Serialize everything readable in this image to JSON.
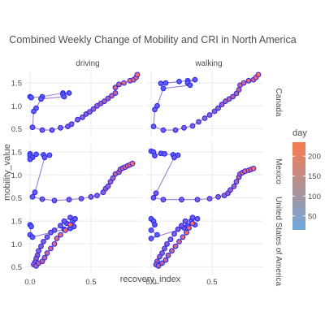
{
  "chart_data": {
    "type": "scatter",
    "title": "Combined Weekly Change of Mobility and CRI in North America",
    "xlabel": "recovery_index",
    "ylabel": "mobility_value",
    "x_ticks": [
      "0.0",
      "0.5"
    ],
    "x_tick_values": [
      0.0,
      0.5
    ],
    "y_ticks": [
      "0.5",
      "1.0",
      "1.5"
    ],
    "y_tick_values": [
      0.5,
      1.0,
      1.5
    ],
    "xlim": [
      -0.04,
      0.92
    ],
    "ylim": [
      0.33,
      1.75
    ],
    "columns": [
      "driving",
      "walking"
    ],
    "rows": [
      "Canada",
      "Mexico",
      "United States of America"
    ],
    "legend": {
      "title": "day",
      "ticks": [
        "50",
        "100",
        "150",
        "200"
      ],
      "tick_values": [
        50,
        100,
        150,
        200
      ],
      "range": [
        15,
        235
      ],
      "placement": "right",
      "color_low": "#6fa8dc",
      "color_high": "#f97a4f"
    },
    "style": {
      "marker_fill_low": "#5b5cf6",
      "marker_fill_high": "#ff6b5e",
      "marker_edge": "#2a24e8",
      "path_color": "#a27bd0",
      "panel_grid": "#ebebeb"
    },
    "panels": [
      {
        "row": "Canada",
        "column": "driving",
        "points": [
          [
            0.0,
            1.2
          ],
          [
            0.01,
            1.18
          ],
          [
            0.1,
            1.2
          ],
          [
            0.27,
            1.28
          ],
          [
            0.32,
            1.28
          ],
          [
            0.27,
            1.25
          ],
          [
            0.28,
            1.2
          ],
          [
            0.09,
            1.15
          ],
          [
            0.05,
            0.95
          ],
          [
            0.03,
            0.88
          ],
          [
            0.02,
            0.53
          ],
          [
            0.1,
            0.47
          ],
          [
            0.18,
            0.47
          ],
          [
            0.25,
            0.52
          ],
          [
            0.31,
            0.55
          ],
          [
            0.34,
            0.6
          ],
          [
            0.39,
            0.7
          ],
          [
            0.43,
            0.75
          ],
          [
            0.46,
            0.82
          ],
          [
            0.49,
            0.87
          ],
          [
            0.52,
            0.93
          ],
          [
            0.55,
            1.0
          ],
          [
            0.58,
            1.05
          ],
          [
            0.61,
            1.1
          ],
          [
            0.64,
            1.16
          ],
          [
            0.67,
            1.22
          ],
          [
            0.7,
            1.28
          ],
          [
            0.7,
            1.4
          ],
          [
            0.73,
            1.47
          ],
          [
            0.77,
            1.5
          ],
          [
            0.82,
            1.55
          ],
          [
            0.85,
            1.57
          ],
          [
            0.87,
            1.62
          ],
          [
            0.88,
            1.68
          ]
        ]
      },
      {
        "row": "Canada",
        "column": "walking",
        "points": [
          [
            0.08,
            1.49
          ],
          [
            0.12,
            1.5
          ],
          [
            0.23,
            1.53
          ],
          [
            0.3,
            1.55
          ],
          [
            0.36,
            1.57
          ],
          [
            0.3,
            1.5
          ],
          [
            0.32,
            1.45
          ],
          [
            0.1,
            1.38
          ],
          [
            0.05,
            1.0
          ],
          [
            0.03,
            0.92
          ],
          [
            0.02,
            0.55
          ],
          [
            0.1,
            0.47
          ],
          [
            0.2,
            0.47
          ],
          [
            0.27,
            0.52
          ],
          [
            0.34,
            0.56
          ],
          [
            0.39,
            0.65
          ],
          [
            0.44,
            0.73
          ],
          [
            0.48,
            0.8
          ],
          [
            0.52,
            0.88
          ],
          [
            0.55,
            0.95
          ],
          [
            0.58,
            1.03
          ],
          [
            0.61,
            1.1
          ],
          [
            0.64,
            1.15
          ],
          [
            0.67,
            1.2
          ],
          [
            0.7,
            1.27
          ],
          [
            0.72,
            1.35
          ],
          [
            0.73,
            1.45
          ],
          [
            0.76,
            1.5
          ],
          [
            0.8,
            1.55
          ],
          [
            0.84,
            1.57
          ],
          [
            0.86,
            1.62
          ],
          [
            0.88,
            1.68
          ]
        ]
      },
      {
        "row": "Mexico",
        "column": "driving",
        "points": [
          [
            0.0,
            1.46
          ],
          [
            0.0,
            1.42
          ],
          [
            0.02,
            1.38
          ],
          [
            0.0,
            1.34
          ],
          [
            0.05,
            1.45
          ],
          [
            0.11,
            1.44
          ],
          [
            0.16,
            1.43
          ],
          [
            0.12,
            1.38
          ],
          [
            0.04,
            0.62
          ],
          [
            0.02,
            0.52
          ],
          [
            0.1,
            0.47
          ],
          [
            0.2,
            0.44
          ],
          [
            0.32,
            0.46
          ],
          [
            0.42,
            0.48
          ],
          [
            0.5,
            0.52
          ],
          [
            0.55,
            0.55
          ],
          [
            0.6,
            0.62
          ],
          [
            0.62,
            0.7
          ],
          [
            0.64,
            0.75
          ],
          [
            0.66,
            0.85
          ],
          [
            0.68,
            0.93
          ],
          [
            0.7,
            1.02
          ],
          [
            0.73,
            1.06
          ],
          [
            0.74,
            1.12
          ],
          [
            0.76,
            1.15
          ],
          [
            0.78,
            1.17
          ],
          [
            0.8,
            1.2
          ],
          [
            0.82,
            1.22
          ],
          [
            0.84,
            1.25
          ]
        ]
      },
      {
        "row": "Mexico",
        "column": "walking",
        "points": [
          [
            0.0,
            1.52
          ],
          [
            0.02,
            1.5
          ],
          [
            0.03,
            1.42
          ],
          [
            0.08,
            1.47
          ],
          [
            0.11,
            1.46
          ],
          [
            0.18,
            1.44
          ],
          [
            0.22,
            1.43
          ],
          [
            0.19,
            1.38
          ],
          [
            0.04,
            0.6
          ],
          [
            0.02,
            0.5
          ],
          [
            0.1,
            0.46
          ],
          [
            0.25,
            0.46
          ],
          [
            0.38,
            0.46
          ],
          [
            0.48,
            0.48
          ],
          [
            0.55,
            0.52
          ],
          [
            0.6,
            0.55
          ],
          [
            0.63,
            0.6
          ],
          [
            0.65,
            0.67
          ],
          [
            0.68,
            0.75
          ],
          [
            0.7,
            0.85
          ],
          [
            0.72,
            0.95
          ],
          [
            0.73,
            1.02
          ],
          [
            0.75,
            1.05
          ],
          [
            0.77,
            1.08
          ],
          [
            0.8,
            1.1
          ],
          [
            0.82,
            1.12
          ],
          [
            0.84,
            1.14
          ]
        ]
      },
      {
        "row": "United States of America",
        "column": "driving",
        "points": [
          [
            0.0,
            1.42
          ],
          [
            0.01,
            1.38
          ],
          [
            0.0,
            1.2
          ],
          [
            0.02,
            1.15
          ],
          [
            0.28,
            1.32
          ],
          [
            0.33,
            1.34
          ],
          [
            0.36,
            1.38
          ],
          [
            0.3,
            1.45
          ],
          [
            0.35,
            1.5
          ],
          [
            0.37,
            1.55
          ],
          [
            0.33,
            1.58
          ],
          [
            0.28,
            1.5
          ],
          [
            0.25,
            1.4
          ],
          [
            0.2,
            1.3
          ],
          [
            0.17,
            1.25
          ],
          [
            0.14,
            1.15
          ],
          [
            0.11,
            1.05
          ],
          [
            0.09,
            0.95
          ],
          [
            0.07,
            0.85
          ],
          [
            0.06,
            0.75
          ],
          [
            0.05,
            0.68
          ],
          [
            0.04,
            0.6
          ],
          [
            0.03,
            0.55
          ],
          [
            0.05,
            0.52
          ],
          [
            0.07,
            0.58
          ],
          [
            0.1,
            0.62
          ],
          [
            0.12,
            0.7
          ],
          [
            0.14,
            0.8
          ],
          [
            0.17,
            0.9
          ],
          [
            0.2,
            1.0
          ],
          [
            0.22,
            1.12
          ],
          [
            0.25,
            1.2
          ],
          [
            0.29,
            1.3
          ],
          [
            0.33,
            1.42
          ]
        ]
      },
      {
        "row": "United States of America",
        "column": "walking",
        "points": [
          [
            0.0,
            1.55
          ],
          [
            0.02,
            1.5
          ],
          [
            0.03,
            1.42
          ],
          [
            0.0,
            1.3
          ],
          [
            0.05,
            1.2
          ],
          [
            0.0,
            1.12
          ],
          [
            0.27,
            1.35
          ],
          [
            0.3,
            1.4
          ],
          [
            0.36,
            1.42
          ],
          [
            0.33,
            1.5
          ],
          [
            0.38,
            1.55
          ],
          [
            0.34,
            1.58
          ],
          [
            0.28,
            1.5
          ],
          [
            0.25,
            1.4
          ],
          [
            0.22,
            1.32
          ],
          [
            0.19,
            1.22
          ],
          [
            0.16,
            1.1
          ],
          [
            0.13,
            1.0
          ],
          [
            0.11,
            0.9
          ],
          [
            0.09,
            0.8
          ],
          [
            0.07,
            0.72
          ],
          [
            0.05,
            0.62
          ],
          [
            0.04,
            0.55
          ],
          [
            0.06,
            0.52
          ],
          [
            0.09,
            0.58
          ],
          [
            0.12,
            0.65
          ],
          [
            0.14,
            0.75
          ],
          [
            0.17,
            0.85
          ],
          [
            0.2,
            0.95
          ],
          [
            0.23,
            1.05
          ],
          [
            0.26,
            1.15
          ],
          [
            0.29,
            1.25
          ],
          [
            0.31,
            1.35
          ],
          [
            0.34,
            1.45
          ]
        ]
      }
    ]
  }
}
